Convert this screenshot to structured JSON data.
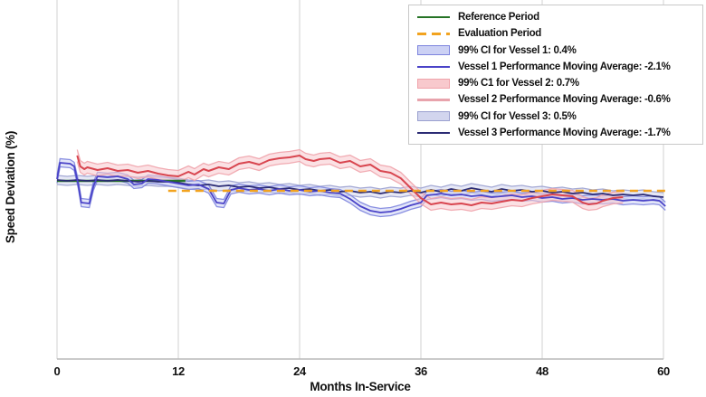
{
  "chart_data": {
    "type": "line",
    "title": "",
    "xlabel": "Months In-Service",
    "ylabel": "Speed Deviation (%)",
    "x_range": [
      0,
      60
    ],
    "ylim": [
      -19.7,
      20.0
    ],
    "x_ticks": [
      0,
      12,
      24,
      36,
      48,
      60
    ],
    "x_tick_labels": [
      "0",
      "12",
      "24",
      "36",
      "48",
      "60"
    ],
    "y_tick_labels": [],
    "grid": "vertical-only",
    "legend_position": "top-right",
    "colors": {
      "reference": "#267326",
      "evaluation": "#f2a31f",
      "vessel1_line": "#4a43c8",
      "vessel1_band_fill": "#ccd1f4",
      "vessel1_band_edge": "#7d84de",
      "vessel2_line": "#d8454f",
      "vessel2_band_fill": "#f8c9cd",
      "vessel2_band_edge": "#f0a3ab",
      "vessel2_legend_line": "#e8a3ac",
      "vessel3_line": "#2b2b74",
      "vessel3_band_fill": "#d2d5ee",
      "vessel3_band_edge": "#9aa0cf",
      "gridline": "#dcdcdc",
      "axis_line": "#b8b8b8",
      "text": "#111111"
    },
    "legend": [
      {
        "label": "Reference Period",
        "type": "line",
        "color": "#267326"
      },
      {
        "label": "Evaluation Period",
        "type": "dashed",
        "color": "#f2a31f"
      },
      {
        "label": "99% CI for Vessel 1: 0.4%",
        "type": "patch",
        "fill": "#ccd1f4",
        "edge": "#7d84de"
      },
      {
        "label": "Vessel 1 Performance Moving Average: -2.1%",
        "type": "line",
        "color": "#4a43c8"
      },
      {
        "label": "99% C1 for Vessel 2: 0.7%",
        "type": "patch",
        "fill": "#f8c9cd",
        "edge": "#f0a3ab"
      },
      {
        "label": "Vessel 2 Performance Moving Average: -0.6%",
        "type": "line",
        "color": "#e8a3ac"
      },
      {
        "label": "99% CI for Vessel 3: 0.5%",
        "type": "patch",
        "fill": "#d2d5ee",
        "edge": "#9aa0cf"
      },
      {
        "label": "Vessel 3 Performance Moving Average: -1.7%",
        "type": "line",
        "color": "#2b2b74"
      }
    ],
    "reference_line": {
      "value": 0.0,
      "points": [
        [
          0,
          0
        ],
        [
          12.7,
          0
        ]
      ]
    },
    "evaluation_line": {
      "value": -1.1,
      "points": [
        [
          11,
          -1.1
        ],
        [
          60.3,
          -1.1
        ]
      ]
    },
    "series": [
      {
        "name": "Vessel 1 Performance Moving Average",
        "moving_average_pct": -2.1,
        "ci_pct": 0.4,
        "ci_half_width": 0.45,
        "points": [
          [
            0,
            0.2
          ],
          [
            0.3,
            2.0
          ],
          [
            1.3,
            1.9
          ],
          [
            1.7,
            1.6
          ],
          [
            2.1,
            -0.4
          ],
          [
            2.4,
            -2.4
          ],
          [
            3.2,
            -2.5
          ],
          [
            3.6,
            -0.6
          ],
          [
            4,
            0.5
          ],
          [
            5,
            0.4
          ],
          [
            6,
            0.5
          ],
          [
            7,
            0.2
          ],
          [
            7.6,
            -0.4
          ],
          [
            8.4,
            -0.3
          ],
          [
            9,
            0.2
          ],
          [
            10,
            0.1
          ],
          [
            11,
            -0.1
          ],
          [
            12,
            -0.3
          ],
          [
            13,
            -0.5
          ],
          [
            14,
            -0.4
          ],
          [
            15,
            -0.9
          ],
          [
            15.8,
            -2.4
          ],
          [
            16.5,
            -2.5
          ],
          [
            17.2,
            -1.0
          ],
          [
            18,
            -0.8
          ],
          [
            19,
            -1.0
          ],
          [
            20,
            -0.9
          ],
          [
            21,
            -1.1
          ],
          [
            22,
            -0.9
          ],
          [
            23,
            -1.1
          ],
          [
            24,
            -1.0
          ],
          [
            25,
            -1.2
          ],
          [
            26,
            -1.1
          ],
          [
            27,
            -1.3
          ],
          [
            28,
            -1.4
          ],
          [
            29,
            -2.0
          ],
          [
            30,
            -2.8
          ],
          [
            31,
            -3.3
          ],
          [
            32,
            -3.5
          ],
          [
            33,
            -3.4
          ],
          [
            34,
            -3.1
          ],
          [
            35,
            -2.7
          ],
          [
            36,
            -2.4
          ],
          [
            36.6,
            -1.6
          ],
          [
            37.5,
            -1.5
          ],
          [
            38,
            -1.4
          ],
          [
            39,
            -1.6
          ],
          [
            40,
            -1.5
          ],
          [
            41,
            -1.7
          ],
          [
            42,
            -1.6
          ],
          [
            43,
            -1.8
          ],
          [
            44,
            -1.7
          ],
          [
            45,
            -1.6
          ],
          [
            46,
            -1.8
          ],
          [
            47,
            -1.7
          ],
          [
            48,
            -1.9
          ],
          [
            49,
            -1.8
          ],
          [
            50,
            -2.0
          ],
          [
            51,
            -1.9
          ],
          [
            52,
            -2.1
          ],
          [
            53,
            -2.0
          ],
          [
            54,
            -2.1
          ],
          [
            55,
            -2.0
          ],
          [
            56,
            -2.2
          ],
          [
            57,
            -2.1
          ],
          [
            58,
            -2.2
          ],
          [
            59,
            -2.1
          ],
          [
            59.6,
            -2.2
          ],
          [
            60.2,
            -2.8
          ]
        ]
      },
      {
        "name": "Vessel 2 Performance Moving Average",
        "moving_average_pct": -0.6,
        "ci_pct": 0.7,
        "ci_half_width": 0.65,
        "points": [
          [
            2.0,
            2.8
          ],
          [
            2.3,
            1.6
          ],
          [
            2.7,
            1.3
          ],
          [
            3,
            1.5
          ],
          [
            4,
            1.2
          ],
          [
            5,
            1.4
          ],
          [
            6,
            1.1
          ],
          [
            7,
            1.2
          ],
          [
            8,
            0.9
          ],
          [
            9,
            1.1
          ],
          [
            10,
            0.8
          ],
          [
            11,
            0.6
          ],
          [
            12,
            0.5
          ],
          [
            13,
            1.0
          ],
          [
            13.6,
            0.7
          ],
          [
            14.5,
            1.3
          ],
          [
            15,
            1.1
          ],
          [
            16,
            1.5
          ],
          [
            17,
            1.3
          ],
          [
            18,
            1.9
          ],
          [
            19,
            2.1
          ],
          [
            20,
            1.8
          ],
          [
            21,
            2.3
          ],
          [
            22,
            2.5
          ],
          [
            23,
            2.6
          ],
          [
            24,
            2.8
          ],
          [
            24.6,
            2.4
          ],
          [
            25.4,
            2.2
          ],
          [
            26,
            2.4
          ],
          [
            27,
            2.5
          ],
          [
            28,
            2.0
          ],
          [
            29,
            2.2
          ],
          [
            30,
            1.6
          ],
          [
            31,
            1.8
          ],
          [
            32,
            1.1
          ],
          [
            33,
            0.9
          ],
          [
            34,
            0.3
          ],
          [
            35,
            -0.8
          ],
          [
            36,
            -1.9
          ],
          [
            37,
            -2.6
          ],
          [
            38,
            -2.4
          ],
          [
            39,
            -2.6
          ],
          [
            40,
            -2.5
          ],
          [
            41,
            -2.7
          ],
          [
            42,
            -2.4
          ],
          [
            43,
            -2.5
          ],
          [
            44,
            -2.3
          ],
          [
            45,
            -2.1
          ],
          [
            46,
            -2.2
          ],
          [
            47,
            -1.9
          ],
          [
            48,
            -1.7
          ],
          [
            49,
            -1.5
          ],
          [
            50,
            -1.6
          ],
          [
            51,
            -1.7
          ],
          [
            52,
            -2.4
          ],
          [
            52.6,
            -2.6
          ],
          [
            53.4,
            -2.5
          ],
          [
            54,
            -2.2
          ],
          [
            55,
            -1.9
          ],
          [
            56,
            -1.8
          ]
        ]
      },
      {
        "name": "Vessel 3 Performance Moving Average",
        "moving_average_pct": -1.7,
        "ci_pct": 0.5,
        "ci_half_width": 0.5,
        "points": [
          [
            0,
            0.1
          ],
          [
            1,
            0.0
          ],
          [
            2,
            0.1
          ],
          [
            3,
            0.0
          ],
          [
            4,
            0.1
          ],
          [
            5,
            0.0
          ],
          [
            6,
            0.1
          ],
          [
            7,
            0.0
          ],
          [
            8,
            -0.1
          ],
          [
            9,
            0.0
          ],
          [
            10,
            -0.1
          ],
          [
            11,
            -0.1
          ],
          [
            12,
            -0.2
          ],
          [
            13,
            -0.4
          ],
          [
            14,
            -0.5
          ],
          [
            15,
            -0.4
          ],
          [
            16,
            -0.6
          ],
          [
            17,
            -0.5
          ],
          [
            18,
            -0.7
          ],
          [
            19,
            -0.6
          ],
          [
            20,
            -0.8
          ],
          [
            21,
            -0.7
          ],
          [
            22,
            -0.9
          ],
          [
            23,
            -0.8
          ],
          [
            24,
            -1.0
          ],
          [
            25,
            -0.9
          ],
          [
            26,
            -1.1
          ],
          [
            27,
            -1.0
          ],
          [
            28,
            -1.2
          ],
          [
            29,
            -1.1
          ],
          [
            30,
            -1.3
          ],
          [
            31,
            -1.2
          ],
          [
            32,
            -1.4
          ],
          [
            33,
            -1.2
          ],
          [
            34,
            -1.3
          ],
          [
            35,
            -1.1
          ],
          [
            36,
            -1.3
          ],
          [
            37,
            -1.0
          ],
          [
            38,
            -1.2
          ],
          [
            39,
            -0.9
          ],
          [
            40,
            -1.1
          ],
          [
            41,
            -0.8
          ],
          [
            42,
            -1.0
          ],
          [
            43,
            -1.2
          ],
          [
            44,
            -0.9
          ],
          [
            45,
            -1.1
          ],
          [
            46,
            -1.0
          ],
          [
            47,
            -1.2
          ],
          [
            48,
            -1.1
          ],
          [
            49,
            -1.3
          ],
          [
            50,
            -1.2
          ],
          [
            51,
            -1.4
          ],
          [
            52,
            -1.3
          ],
          [
            53,
            -1.5
          ],
          [
            54,
            -1.4
          ],
          [
            55,
            -1.6
          ],
          [
            56,
            -1.5
          ],
          [
            57,
            -1.6
          ],
          [
            58,
            -1.5
          ],
          [
            59,
            -1.7
          ],
          [
            60,
            -1.8
          ]
        ]
      }
    ]
  }
}
